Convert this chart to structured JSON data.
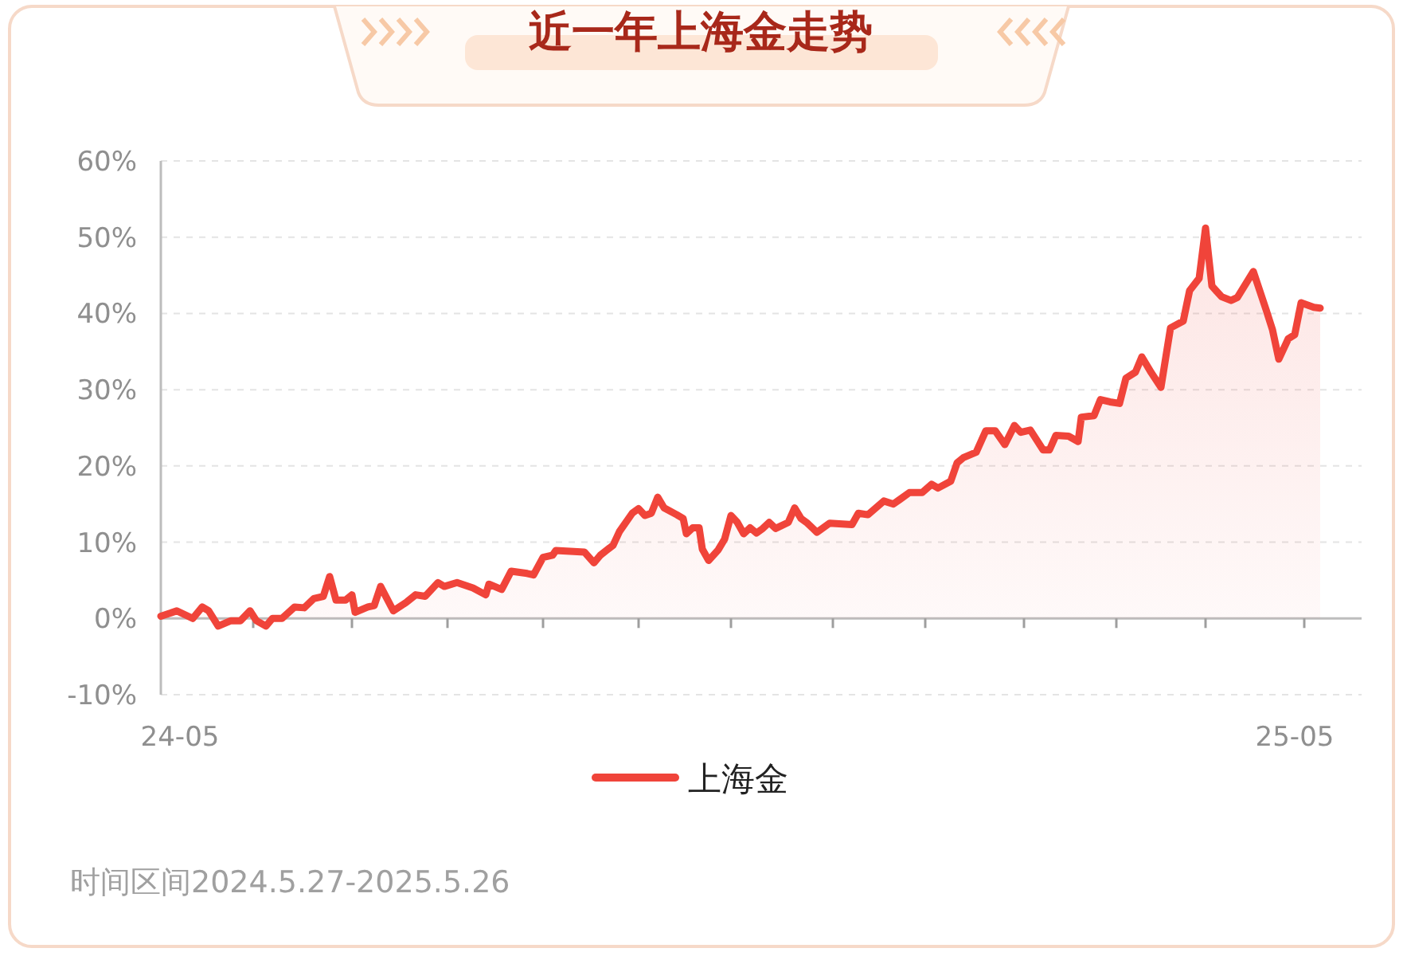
{
  "chart_data": {
    "type": "area",
    "title": "近一年上海金走势",
    "series": [
      {
        "name": "上海金",
        "color": "#f0443a",
        "x": [
          "2024-05-27",
          "2024-05-30",
          "2024-06-01",
          "2024-06-06",
          "2024-06-09",
          "2024-06-11",
          "2024-06-14",
          "2024-06-18",
          "2024-06-21",
          "2024-06-24",
          "2024-06-26",
          "2024-06-29",
          "2024-07-01",
          "2024-07-04",
          "2024-07-08",
          "2024-07-11",
          "2024-07-14",
          "2024-07-17",
          "2024-07-19",
          "2024-07-21",
          "2024-07-24",
          "2024-07-26",
          "2024-07-27",
          "2024-07-31",
          "2024-08-02",
          "2024-08-04",
          "2024-08-08",
          "2024-08-12",
          "2024-08-15",
          "2024-08-18",
          "2024-08-22",
          "2024-08-24",
          "2024-08-28",
          "2024-09-02",
          "2024-09-06",
          "2024-09-07",
          "2024-09-11",
          "2024-09-14",
          "2024-09-19",
          "2024-09-21",
          "2024-09-24",
          "2024-09-27",
          "2024-09-28",
          "2024-10-07",
          "2024-10-10",
          "2024-10-12",
          "2024-10-16",
          "2024-10-18",
          "2024-10-22",
          "2024-10-24",
          "2024-10-26",
          "2024-10-28",
          "2024-10-30",
          "2024-11-01",
          "2024-11-05",
          "2024-11-07",
          "2024-11-08",
          "2024-11-10",
          "2024-11-12",
          "2024-11-13",
          "2024-11-15",
          "2024-11-18",
          "2024-11-20",
          "2024-11-22",
          "2024-11-24",
          "2024-11-26",
          "2024-11-28",
          "2024-11-30",
          "2024-12-02",
          "2024-12-04",
          "2024-12-06",
          "2024-12-10",
          "2024-12-12",
          "2024-12-14",
          "2024-12-16",
          "2024-12-19",
          "2024-12-23",
          "2024-12-30",
          "2025-01-01",
          "2025-01-04",
          "2025-01-09",
          "2025-01-12",
          "2025-01-14",
          "2025-01-17",
          "2025-01-21",
          "2025-01-24",
          "2025-01-26",
          "2025-01-30",
          "2025-02-01",
          "2025-02-03",
          "2025-02-07",
          "2025-02-10",
          "2025-02-13",
          "2025-02-16",
          "2025-02-19",
          "2025-02-21",
          "2025-02-24",
          "2025-02-28",
          "2025-03-02",
          "2025-03-04",
          "2025-03-08",
          "2025-03-11",
          "2025-03-12",
          "2025-03-16",
          "2025-03-18",
          "2025-03-21",
          "2025-03-24",
          "2025-03-26",
          "2025-03-29",
          "2025-03-31",
          "2025-04-03",
          "2025-04-06",
          "2025-04-09",
          "2025-04-13",
          "2025-04-15",
          "2025-04-18",
          "2025-04-20",
          "2025-04-22",
          "2025-04-25",
          "2025-04-28",
          "2025-04-30",
          "2025-05-05",
          "2025-05-09",
          "2025-05-11",
          "2025-05-13",
          "2025-05-16",
          "2025-05-18",
          "2025-05-20",
          "2025-05-24",
          "2025-05-26"
        ],
        "values": [
          0.3,
          0.7,
          1.0,
          0,
          1.5,
          1.0,
          -1.0,
          -0.3,
          -0.3,
          1.0,
          -0.3,
          -1.0,
          0,
          0,
          1.5,
          1.4,
          2.6,
          2.9,
          5.5,
          2.4,
          2.4,
          3.1,
          0.8,
          1.5,
          1.7,
          4.2,
          1.0,
          2.1,
          3.1,
          2.9,
          4.7,
          4.2,
          4.7,
          4.0,
          3.1,
          4.5,
          3.8,
          6.2,
          5.9,
          5.7,
          8.0,
          8.3,
          8.9,
          8.7,
          7.3,
          8.3,
          9.6,
          11.4,
          13.8,
          14.4,
          13.5,
          13.8,
          15.9,
          14.5,
          13.6,
          13.1,
          11.1,
          11.9,
          11.9,
          9.1,
          7.6,
          9.0,
          10.4,
          13.5,
          12.6,
          11.1,
          11.9,
          11.2,
          11.8,
          12.6,
          11.8,
          12.6,
          14.5,
          13.1,
          12.5,
          11.3,
          12.5,
          12.3,
          13.8,
          13.6,
          15.4,
          15.0,
          15.6,
          16.5,
          16.5,
          17.6,
          17.1,
          18.0,
          20.4,
          21.1,
          21.8,
          24.6,
          24.6,
          22.8,
          25.3,
          24.4,
          24.7,
          22.1,
          22.1,
          24.0,
          23.9,
          23.2,
          26.4,
          26.6,
          28.7,
          28.4,
          28.2,
          31.5,
          32.3,
          34.3,
          32.2,
          30.3,
          38.1,
          39.0,
          43.0,
          44.6,
          51.2,
          43.6,
          42.2,
          41.7,
          42.1,
          45.5,
          40.5,
          37.9,
          34.0,
          36.7,
          37.2,
          41.4,
          40.8,
          40.7
        ]
      }
    ],
    "ylim": [
      -10,
      60
    ],
    "yticks": [
      {
        "value": -10,
        "label": "-10%"
      },
      {
        "value": 0,
        "label": "0%"
      },
      {
        "value": 10,
        "label": "10%"
      },
      {
        "value": 20,
        "label": "20%"
      },
      {
        "value": 30,
        "label": "30%"
      },
      {
        "value": 40,
        "label": "40%"
      },
      {
        "value": 50,
        "label": "50%"
      },
      {
        "value": 60,
        "label": "60%"
      }
    ],
    "xlim": [
      "2024-05-27",
      "2025-06-08"
    ],
    "xticks": [
      {
        "value": "2024-06-02",
        "label": "24-05"
      },
      {
        "value": "2024-06-25",
        "label": null
      },
      {
        "value": "2024-07-26",
        "label": null
      },
      {
        "value": "2024-08-25",
        "label": null
      },
      {
        "value": "2024-09-24",
        "label": null
      },
      {
        "value": "2024-10-24",
        "label": null
      },
      {
        "value": "2024-11-22",
        "label": null
      },
      {
        "value": "2024-12-24",
        "label": null
      },
      {
        "value": "2025-01-22",
        "label": null
      },
      {
        "value": "2025-02-22",
        "label": null
      },
      {
        "value": "2025-03-23",
        "label": null
      },
      {
        "value": "2025-04-20",
        "label": null
      },
      {
        "value": "2025-05-18",
        "label": "25-05"
      },
      {
        "value": "2025-05-21",
        "label": null
      }
    ],
    "grid": "y",
    "legend": "bottom",
    "annotations": [
      "时间区间2024.5.27-2025.5.26"
    ]
  }
}
